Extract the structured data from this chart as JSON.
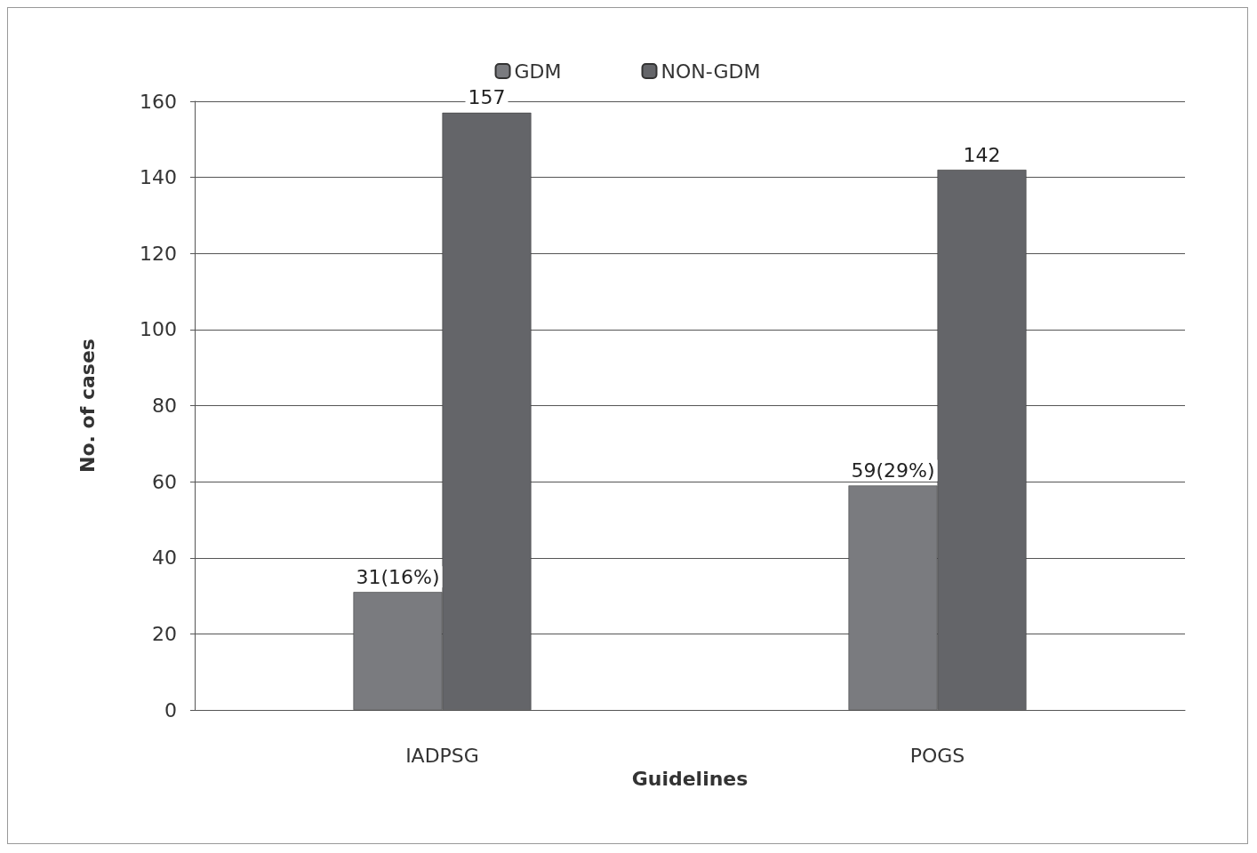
{
  "chart_data": {
    "type": "bar",
    "xlabel": "Guidelines",
    "ylabel": "No. of cases",
    "categories": [
      "IADPSG",
      "POGS"
    ],
    "series": [
      {
        "name": "GDM",
        "color": "#7a7b7f",
        "values": [
          31,
          59
        ],
        "value_labels": [
          "31(16%)",
          "59(29%)"
        ]
      },
      {
        "name": "NON-GDM",
        "color": "#646569",
        "values": [
          157,
          142
        ],
        "value_labels": [
          "157",
          "142"
        ]
      }
    ],
    "ylim": [
      0,
      160
    ],
    "yticks": [
      0,
      20,
      40,
      60,
      80,
      100,
      120,
      140,
      160
    ],
    "grid": "y",
    "legend": "top"
  }
}
